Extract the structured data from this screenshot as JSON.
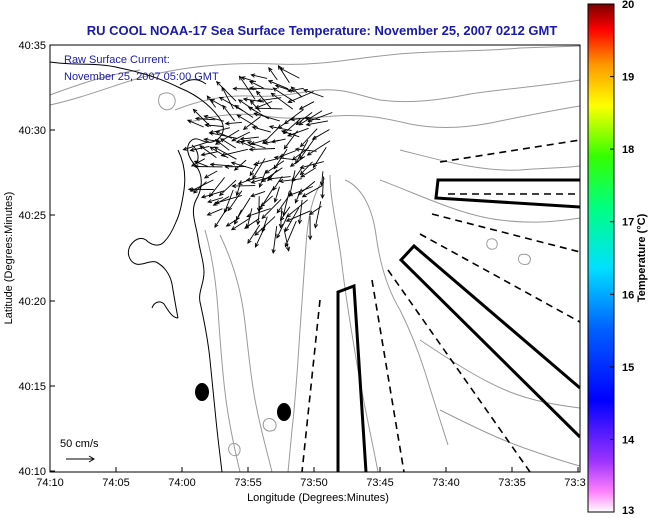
{
  "title": "RU COOL  NOAA-17  Sea Surface Temperature:  November 25, 2007 0212 GMT",
  "current_label_1": "Raw Surface Current:",
  "current_label_2": "November 25, 2007 05:00 GMT",
  "scale_label": "50 cm/s",
  "xlabel": "Longitude (Degrees:Minutes)",
  "ylabel": "Latitude (Degrees:Minutes)",
  "x_ticks": [
    "74:10",
    "74:05",
    "74:00",
    "73:55",
    "73:50",
    "73:45",
    "73:40",
    "73:35",
    "73:3"
  ],
  "y_ticks": [
    "40:35",
    "40:30",
    "40:25",
    "40:20",
    "40:15",
    "40:10"
  ],
  "colorbar": {
    "label": "Temperature (°C)",
    "ticks": [
      "20",
      "19",
      "18",
      "17",
      "16",
      "15",
      "14",
      "13"
    ],
    "range": [
      13,
      20
    ]
  },
  "colors": {
    "title": "#1a1aa8",
    "contour": "#9a9a9a",
    "coast": "#000000"
  }
}
